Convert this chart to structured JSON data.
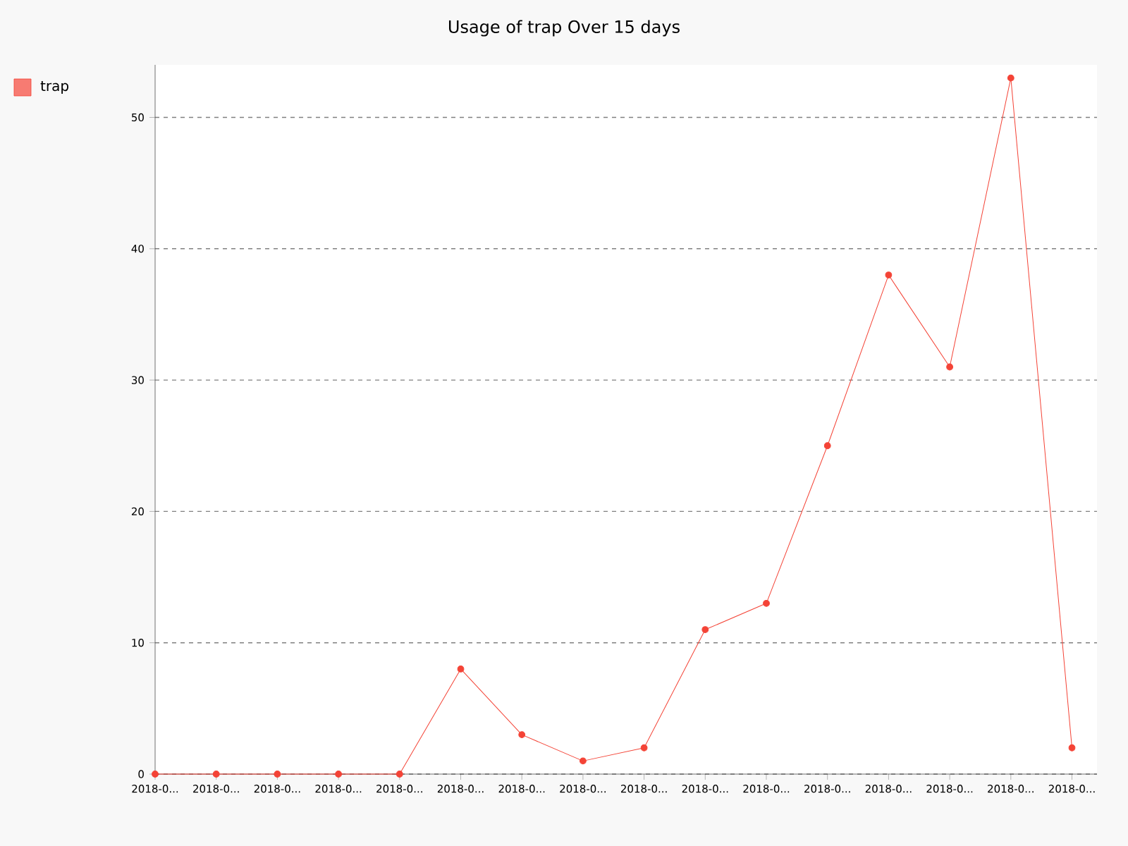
{
  "chart_data": {
    "type": "line",
    "title": "Usage of trap Over 15 days",
    "categories": [
      "2018-0...",
      "2018-0...",
      "2018-0...",
      "2018-0...",
      "2018-0...",
      "2018-0...",
      "2018-0...",
      "2018-0...",
      "2018-0...",
      "2018-0...",
      "2018-0...",
      "2018-0...",
      "2018-0...",
      "2018-0...",
      "2018-0...",
      "2018-0..."
    ],
    "series": [
      {
        "name": "trap",
        "color": "#f44336",
        "values": [
          0,
          0,
          0,
          0,
          0,
          8,
          3,
          1,
          2,
          11,
          13,
          25,
          38,
          31,
          53,
          2
        ]
      }
    ],
    "ylim": [
      0,
      54
    ],
    "yticks": [
      0,
      10,
      20,
      30,
      40,
      50
    ],
    "grid": "y",
    "legend": "top left",
    "marker": "circle",
    "line_style": "solid"
  }
}
